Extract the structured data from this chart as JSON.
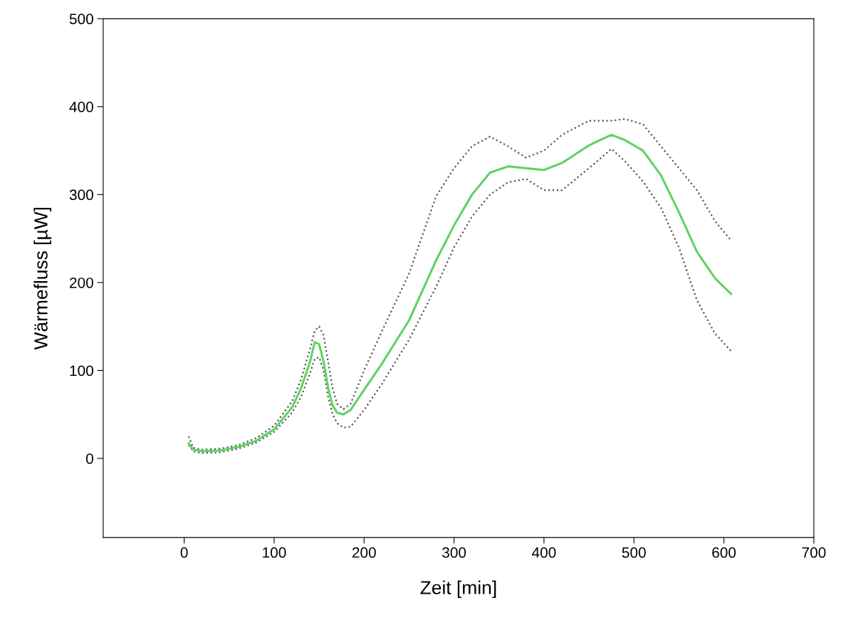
{
  "chart_data": {
    "type": "line",
    "xlabel": "Zeit [min]",
    "ylabel": "Wärmefluss [µW]",
    "x": [
      5,
      10,
      20,
      40,
      60,
      80,
      100,
      120,
      130,
      140,
      145,
      150,
      155,
      160,
      165,
      170,
      177,
      185,
      200,
      220,
      250,
      280,
      300,
      320,
      340,
      360,
      380,
      400,
      420,
      450,
      475,
      490,
      510,
      530,
      550,
      570,
      590,
      608
    ],
    "series": [
      {
        "color": "#555555",
        "line_style": "dotted",
        "values": [
          25,
          12,
          10,
          11,
          15,
          23,
          37,
          65,
          90,
          125,
          145,
          150,
          140,
          110,
          80,
          62,
          56,
          62,
          100,
          145,
          210,
          298,
          330,
          355,
          366,
          355,
          342,
          350,
          368,
          384,
          384,
          386,
          380,
          355,
          330,
          305,
          270,
          248
        ]
      },
      {
        "color": "#555555",
        "line_style": "dotted",
        "values": [
          15,
          8,
          6,
          7,
          11,
          18,
          30,
          52,
          70,
          97,
          113,
          115,
          100,
          70,
          50,
          40,
          35,
          36,
          55,
          85,
          135,
          195,
          240,
          275,
          300,
          314,
          318,
          305,
          305,
          330,
          352,
          338,
          315,
          285,
          240,
          180,
          142,
          122
        ]
      },
      {
        "color": "#5fd35f",
        "line_style": "solid",
        "values": [
          17,
          10,
          8,
          9,
          13,
          20,
          33,
          58,
          80,
          110,
          132,
          130,
          110,
          80,
          60,
          52,
          50,
          55,
          78,
          108,
          157,
          225,
          265,
          300,
          325,
          332,
          330,
          328,
          336,
          356,
          368,
          362,
          350,
          322,
          280,
          235,
          205,
          187
        ]
      }
    ],
    "xlim": [
      -90,
      700
    ],
    "xticks": [
      0,
      100,
      200,
      300,
      400,
      500,
      600,
      700
    ],
    "ylim": [
      -90,
      500
    ],
    "yticks": [
      0,
      100,
      200,
      300,
      400,
      500
    ],
    "marker": "none",
    "grid": false,
    "legend": false
  }
}
